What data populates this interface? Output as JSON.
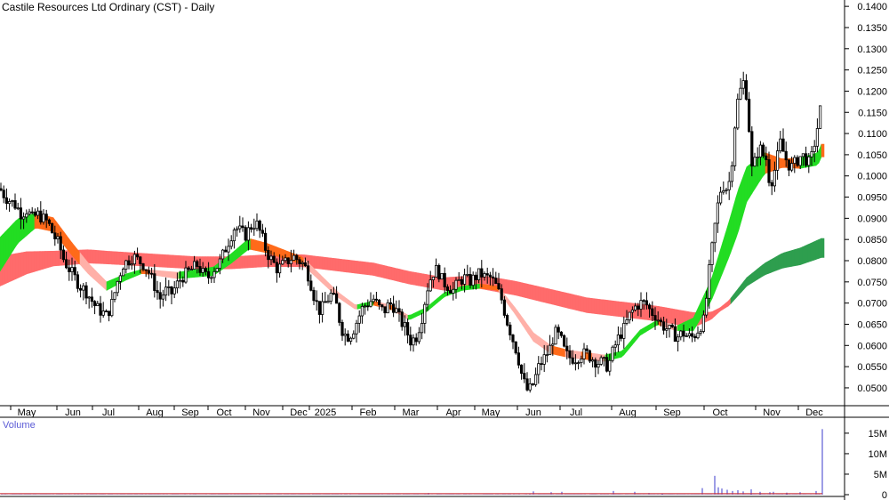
{
  "title": "Castile Resources Ltd Ordinary (CST) - Daily",
  "volume_label": "Volume",
  "colors": {
    "candle": "#000000",
    "long_ribbon_bear": "#ff6b6b",
    "long_ribbon_bull": "#2e9e4e",
    "short_ribbon_bull": "#22dd22",
    "short_ribbon_bear": "#ff6a1a",
    "short_ribbon_soft_bear": "#ffb0a8",
    "volume_bar": "#5b5bd6",
    "volume_avg": "#cc2222",
    "axis": "#000000"
  },
  "chart_data": {
    "type": "candlestick",
    "x_labels": [
      "May",
      "Jun",
      "Jul",
      "Aug",
      "Sep",
      "Oct",
      "Nov",
      "Dec",
      "2025",
      "Feb",
      "Mar",
      "Apr",
      "May",
      "Jun",
      "Jul",
      "Aug",
      "Sep",
      "Oct",
      "Nov",
      "Dec"
    ],
    "ylim": [
      0.046,
      0.1415
    ],
    "y_ticks": [
      "0.1400",
      "0.1350",
      "0.1300",
      "0.1250",
      "0.1200",
      "0.1150",
      "0.1100",
      "0.1050",
      "0.1000",
      "0.0950",
      "0.0900",
      "0.0850",
      "0.0800",
      "0.0750",
      "0.0700",
      "0.0650",
      "0.0600",
      "0.0550",
      "0.0500"
    ],
    "price_path": [
      [
        0,
        0.097
      ],
      [
        6,
        0.095
      ],
      [
        12,
        0.094
      ],
      [
        18,
        0.093
      ],
      [
        24,
        0.091
      ],
      [
        30,
        0.092
      ],
      [
        36,
        0.09
      ],
      [
        42,
        0.091
      ],
      [
        48,
        0.09
      ],
      [
        54,
        0.089
      ],
      [
        60,
        0.086
      ],
      [
        66,
        0.084
      ],
      [
        72,
        0.08
      ],
      [
        78,
        0.078
      ],
      [
        84,
        0.076
      ],
      [
        90,
        0.074
      ],
      [
        96,
        0.073
      ],
      [
        102,
        0.071
      ],
      [
        108,
        0.069
      ],
      [
        114,
        0.068
      ],
      [
        120,
        0.067
      ],
      [
        126,
        0.07
      ],
      [
        132,
        0.075
      ],
      [
        138,
        0.079
      ],
      [
        144,
        0.08
      ],
      [
        150,
        0.081
      ],
      [
        156,
        0.08
      ],
      [
        162,
        0.079
      ],
      [
        168,
        0.077
      ],
      [
        174,
        0.074
      ],
      [
        180,
        0.071
      ],
      [
        186,
        0.073
      ],
      [
        192,
        0.072
      ],
      [
        198,
        0.074
      ],
      [
        204,
        0.076
      ],
      [
        210,
        0.077
      ],
      [
        216,
        0.078
      ],
      [
        222,
        0.079
      ],
      [
        228,
        0.077
      ],
      [
        234,
        0.076
      ],
      [
        240,
        0.078
      ],
      [
        246,
        0.079
      ],
      [
        252,
        0.082
      ],
      [
        258,
        0.085
      ],
      [
        264,
        0.088
      ],
      [
        270,
        0.087
      ],
      [
        276,
        0.086
      ],
      [
        282,
        0.088
      ],
      [
        288,
        0.089
      ],
      [
        294,
        0.086
      ],
      [
        300,
        0.082
      ],
      [
        306,
        0.08
      ],
      [
        312,
        0.078
      ],
      [
        318,
        0.079
      ],
      [
        324,
        0.08
      ],
      [
        330,
        0.081
      ],
      [
        336,
        0.08
      ],
      [
        342,
        0.079
      ],
      [
        348,
        0.076
      ],
      [
        354,
        0.071
      ],
      [
        360,
        0.068
      ],
      [
        366,
        0.07
      ],
      [
        372,
        0.072
      ],
      [
        378,
        0.07
      ],
      [
        384,
        0.064
      ],
      [
        390,
        0.062
      ],
      [
        396,
        0.063
      ],
      [
        402,
        0.066
      ],
      [
        408,
        0.069
      ],
      [
        414,
        0.07
      ],
      [
        420,
        0.071
      ],
      [
        426,
        0.069
      ],
      [
        432,
        0.068
      ],
      [
        438,
        0.07
      ],
      [
        444,
        0.069
      ],
      [
        450,
        0.066
      ],
      [
        456,
        0.064
      ],
      [
        462,
        0.061
      ],
      [
        468,
        0.062
      ],
      [
        474,
        0.066
      ],
      [
        480,
        0.073
      ],
      [
        486,
        0.077
      ],
      [
        492,
        0.078
      ],
      [
        498,
        0.075
      ],
      [
        504,
        0.074
      ],
      [
        510,
        0.073
      ],
      [
        516,
        0.075
      ],
      [
        522,
        0.076
      ],
      [
        528,
        0.075
      ],
      [
        534,
        0.076
      ],
      [
        540,
        0.077
      ],
      [
        546,
        0.076
      ],
      [
        552,
        0.076
      ],
      [
        558,
        0.074
      ],
      [
        564,
        0.071
      ],
      [
        570,
        0.066
      ],
      [
        576,
        0.062
      ],
      [
        582,
        0.058
      ],
      [
        588,
        0.052
      ],
      [
        594,
        0.049
      ],
      [
        600,
        0.051
      ],
      [
        606,
        0.055
      ],
      [
        612,
        0.057
      ],
      [
        618,
        0.059
      ],
      [
        624,
        0.063
      ],
      [
        630,
        0.062
      ],
      [
        636,
        0.058
      ],
      [
        642,
        0.057
      ],
      [
        648,
        0.057
      ],
      [
        654,
        0.058
      ],
      [
        660,
        0.058
      ],
      [
        666,
        0.057
      ],
      [
        672,
        0.056
      ],
      [
        678,
        0.056
      ],
      [
        684,
        0.055
      ],
      [
        690,
        0.059
      ],
      [
        696,
        0.062
      ],
      [
        702,
        0.064
      ],
      [
        708,
        0.067
      ],
      [
        714,
        0.069
      ],
      [
        720,
        0.07
      ],
      [
        726,
        0.07
      ],
      [
        732,
        0.068
      ],
      [
        738,
        0.067
      ],
      [
        744,
        0.065
      ],
      [
        750,
        0.064
      ],
      [
        756,
        0.063
      ],
      [
        762,
        0.062
      ],
      [
        768,
        0.063
      ],
      [
        774,
        0.062
      ],
      [
        780,
        0.062
      ],
      [
        786,
        0.064
      ],
      [
        792,
        0.066
      ],
      [
        798,
        0.078
      ],
      [
        804,
        0.088
      ],
      [
        808,
        0.094
      ],
      [
        812,
        0.098
      ],
      [
        818,
        0.097
      ],
      [
        822,
        0.1
      ],
      [
        826,
        0.111
      ],
      [
        830,
        0.118
      ],
      [
        834,
        0.121
      ],
      [
        838,
        0.123
      ],
      [
        842,
        0.113
      ],
      [
        846,
        0.101
      ],
      [
        850,
        0.104
      ],
      [
        854,
        0.107
      ],
      [
        858,
        0.105
      ],
      [
        862,
        0.104
      ],
      [
        866,
        0.098
      ],
      [
        870,
        0.1
      ],
      [
        874,
        0.104
      ],
      [
        878,
        0.108
      ],
      [
        882,
        0.105
      ],
      [
        886,
        0.103
      ],
      [
        890,
        0.102
      ],
      [
        894,
        0.103
      ],
      [
        898,
        0.104
      ],
      [
        902,
        0.105
      ],
      [
        906,
        0.104
      ],
      [
        910,
        0.103
      ],
      [
        914,
        0.105
      ],
      [
        918,
        0.11
      ],
      [
        922,
        0.114
      ],
      [
        924,
        0.119
      ]
    ],
    "short_mma": [
      [
        0,
        0.0815
      ],
      [
        20,
        0.087
      ],
      [
        40,
        0.0895
      ],
      [
        60,
        0.0885
      ],
      [
        80,
        0.083
      ],
      [
        100,
        0.078
      ],
      [
        120,
        0.074
      ],
      [
        140,
        0.076
      ],
      [
        160,
        0.0775
      ],
      [
        180,
        0.077
      ],
      [
        200,
        0.0765
      ],
      [
        220,
        0.077
      ],
      [
        240,
        0.0775
      ],
      [
        260,
        0.0805
      ],
      [
        280,
        0.084
      ],
      [
        300,
        0.083
      ],
      [
        320,
        0.0815
      ],
      [
        340,
        0.08
      ],
      [
        360,
        0.076
      ],
      [
        380,
        0.072
      ],
      [
        400,
        0.069
      ],
      [
        420,
        0.07
      ],
      [
        440,
        0.069
      ],
      [
        460,
        0.0665
      ],
      [
        480,
        0.0685
      ],
      [
        500,
        0.072
      ],
      [
        520,
        0.0735
      ],
      [
        540,
        0.074
      ],
      [
        560,
        0.0735
      ],
      [
        580,
        0.068
      ],
      [
        600,
        0.062
      ],
      [
        620,
        0.059
      ],
      [
        640,
        0.058
      ],
      [
        660,
        0.0575
      ],
      [
        680,
        0.057
      ],
      [
        700,
        0.058
      ],
      [
        720,
        0.063
      ],
      [
        740,
        0.0655
      ],
      [
        760,
        0.064
      ],
      [
        780,
        0.065
      ],
      [
        800,
        0.073
      ],
      [
        820,
        0.085
      ],
      [
        840,
        0.098
      ],
      [
        860,
        0.103
      ],
      [
        880,
        0.103
      ],
      [
        900,
        0.103
      ],
      [
        920,
        0.104
      ],
      [
        924,
        0.106
      ]
    ],
    "short_spread": [
      [
        0,
        0.008
      ],
      [
        40,
        0.0035
      ],
      [
        80,
        0.003
      ],
      [
        160,
        0.001
      ],
      [
        280,
        0.0025
      ],
      [
        400,
        0.001
      ],
      [
        560,
        0.001
      ],
      [
        600,
        0.002
      ],
      [
        760,
        0.001
      ],
      [
        800,
        0.005
      ],
      [
        830,
        0.01
      ],
      [
        850,
        0.0065
      ],
      [
        880,
        0.002
      ],
      [
        924,
        0.003
      ]
    ],
    "long_mma": [
      [
        0,
        0.0775
      ],
      [
        30,
        0.0795
      ],
      [
        60,
        0.0805
      ],
      [
        100,
        0.081
      ],
      [
        140,
        0.0805
      ],
      [
        180,
        0.08
      ],
      [
        220,
        0.0795
      ],
      [
        260,
        0.0795
      ],
      [
        300,
        0.08
      ],
      [
        340,
        0.08
      ],
      [
        380,
        0.079
      ],
      [
        420,
        0.078
      ],
      [
        460,
        0.076
      ],
      [
        500,
        0.0745
      ],
      [
        540,
        0.075
      ],
      [
        580,
        0.0735
      ],
      [
        620,
        0.0715
      ],
      [
        660,
        0.0695
      ],
      [
        700,
        0.0685
      ],
      [
        740,
        0.0675
      ],
      [
        780,
        0.066
      ],
      [
        800,
        0.067
      ],
      [
        820,
        0.07
      ],
      [
        840,
        0.075
      ],
      [
        860,
        0.078
      ],
      [
        880,
        0.08
      ],
      [
        900,
        0.081
      ],
      [
        924,
        0.083
      ]
    ],
    "long_spread": [
      [
        0,
        0.007
      ],
      [
        60,
        0.0035
      ],
      [
        120,
        0.003
      ],
      [
        300,
        0.0028
      ],
      [
        500,
        0.003
      ],
      [
        640,
        0.0035
      ],
      [
        780,
        0.0035
      ],
      [
        810,
        0.0008
      ],
      [
        840,
        0.002
      ],
      [
        880,
        0.0035
      ],
      [
        924,
        0.0045
      ]
    ],
    "volume_ylim": [
      0,
      16500000
    ],
    "volume_ticks": [
      "15M",
      "10M",
      "5M",
      "0"
    ],
    "volume_spikes": [
      [
        925,
        16000000
      ],
      [
        804,
        4600000
      ],
      [
        790,
        1600000
      ],
      [
        808,
        1800000
      ],
      [
        812,
        1500000
      ],
      [
        818,
        1200000
      ],
      [
        824,
        900000
      ],
      [
        830,
        1100000
      ],
      [
        836,
        800000
      ],
      [
        845,
        1300000
      ],
      [
        855,
        700000
      ],
      [
        866,
        600000
      ],
      [
        870,
        700000
      ],
      [
        885,
        500000
      ],
      [
        900,
        600000
      ],
      [
        918,
        900000
      ],
      [
        690,
        900000
      ],
      [
        714,
        700000
      ],
      [
        600,
        800000
      ],
      [
        620,
        600000
      ],
      [
        632,
        700000
      ],
      [
        482,
        400000
      ],
      [
        596,
        300000
      ],
      [
        730,
        400000
      ],
      [
        745,
        300000
      ]
    ]
  }
}
